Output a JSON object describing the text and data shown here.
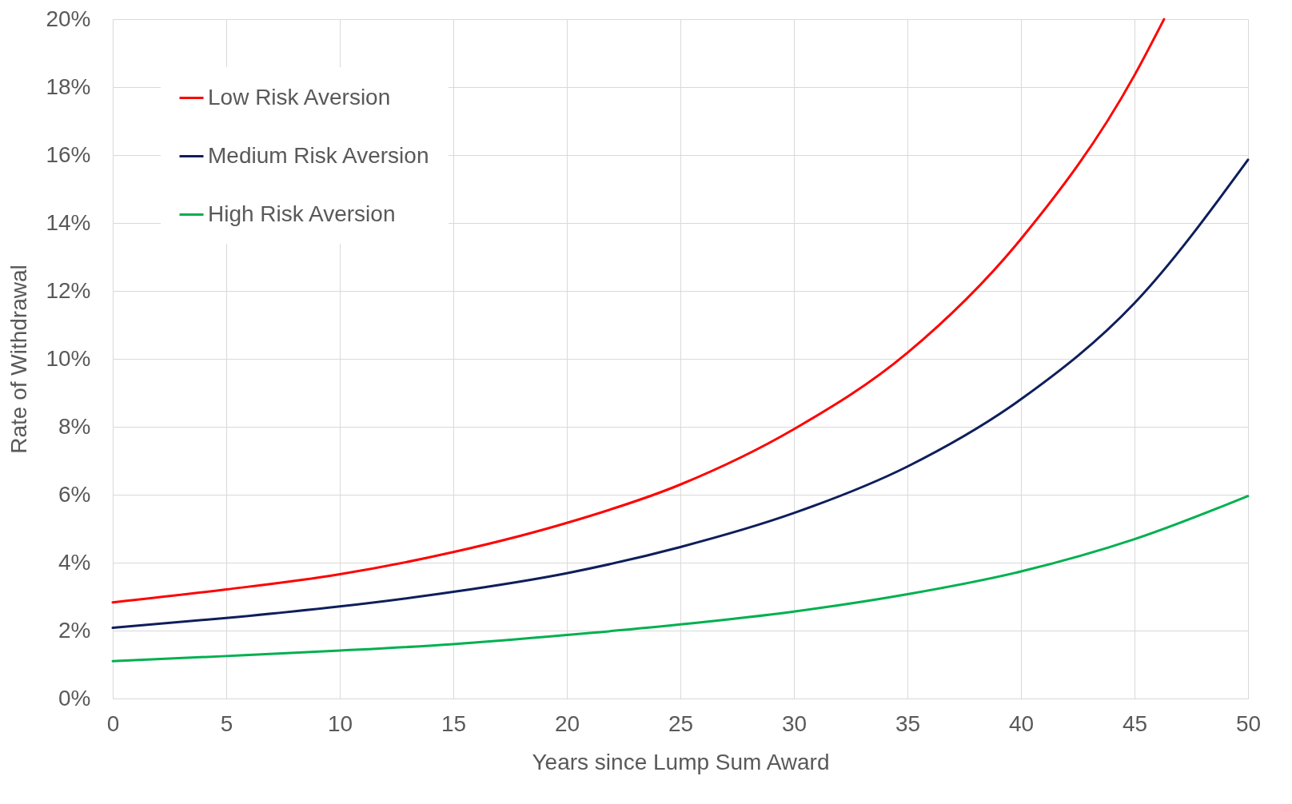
{
  "chart_data": {
    "type": "line",
    "xlabel": "Years since Lump Sum Award",
    "ylabel": "Rate of Withdrawal",
    "x": [
      0,
      5,
      10,
      15,
      20,
      25,
      30,
      35,
      40,
      45,
      50
    ],
    "series": [
      {
        "name": "Low Risk Aversion",
        "color": "#ff0000",
        "x": [
          0,
          5,
          10,
          15,
          20,
          25,
          30,
          35,
          40,
          45,
          46.3
        ],
        "values": [
          2.83,
          3.21,
          3.66,
          4.31,
          5.17,
          6.3,
          7.93,
          10.18,
          13.53,
          18.35,
          20
        ]
      },
      {
        "name": "Medium Risk Aversion",
        "color": "#0e1e5b",
        "values": [
          2.08,
          2.37,
          2.71,
          3.14,
          3.69,
          4.46,
          5.46,
          6.83,
          8.81,
          11.64,
          15.86
        ]
      },
      {
        "name": "High Risk Aversion",
        "color": "#00b050",
        "values": [
          1.1,
          1.25,
          1.41,
          1.6,
          1.87,
          2.18,
          2.56,
          3.07,
          3.74,
          4.69,
          5.96
        ]
      }
    ],
    "xlim": [
      0,
      50
    ],
    "xticks": [
      0,
      5,
      10,
      15,
      20,
      25,
      30,
      35,
      40,
      45,
      50
    ],
    "ylim": [
      0,
      20
    ],
    "yticks": [
      {
        "value": 0,
        "label": "0%"
      },
      {
        "value": 2,
        "label": "2%"
      },
      {
        "value": 4,
        "label": "4%"
      },
      {
        "value": 6,
        "label": "6%"
      },
      {
        "value": 8,
        "label": "8%"
      },
      {
        "value": 10,
        "label": "10%"
      },
      {
        "value": 12,
        "label": "12%"
      },
      {
        "value": 14,
        "label": "14%"
      },
      {
        "value": 16,
        "label": "16%"
      },
      {
        "value": 18,
        "label": "18%"
      },
      {
        "value": 20,
        "label": "20%"
      }
    ],
    "grid": true,
    "legend": "top left",
    "marker": "none",
    "line_style": "solid"
  }
}
